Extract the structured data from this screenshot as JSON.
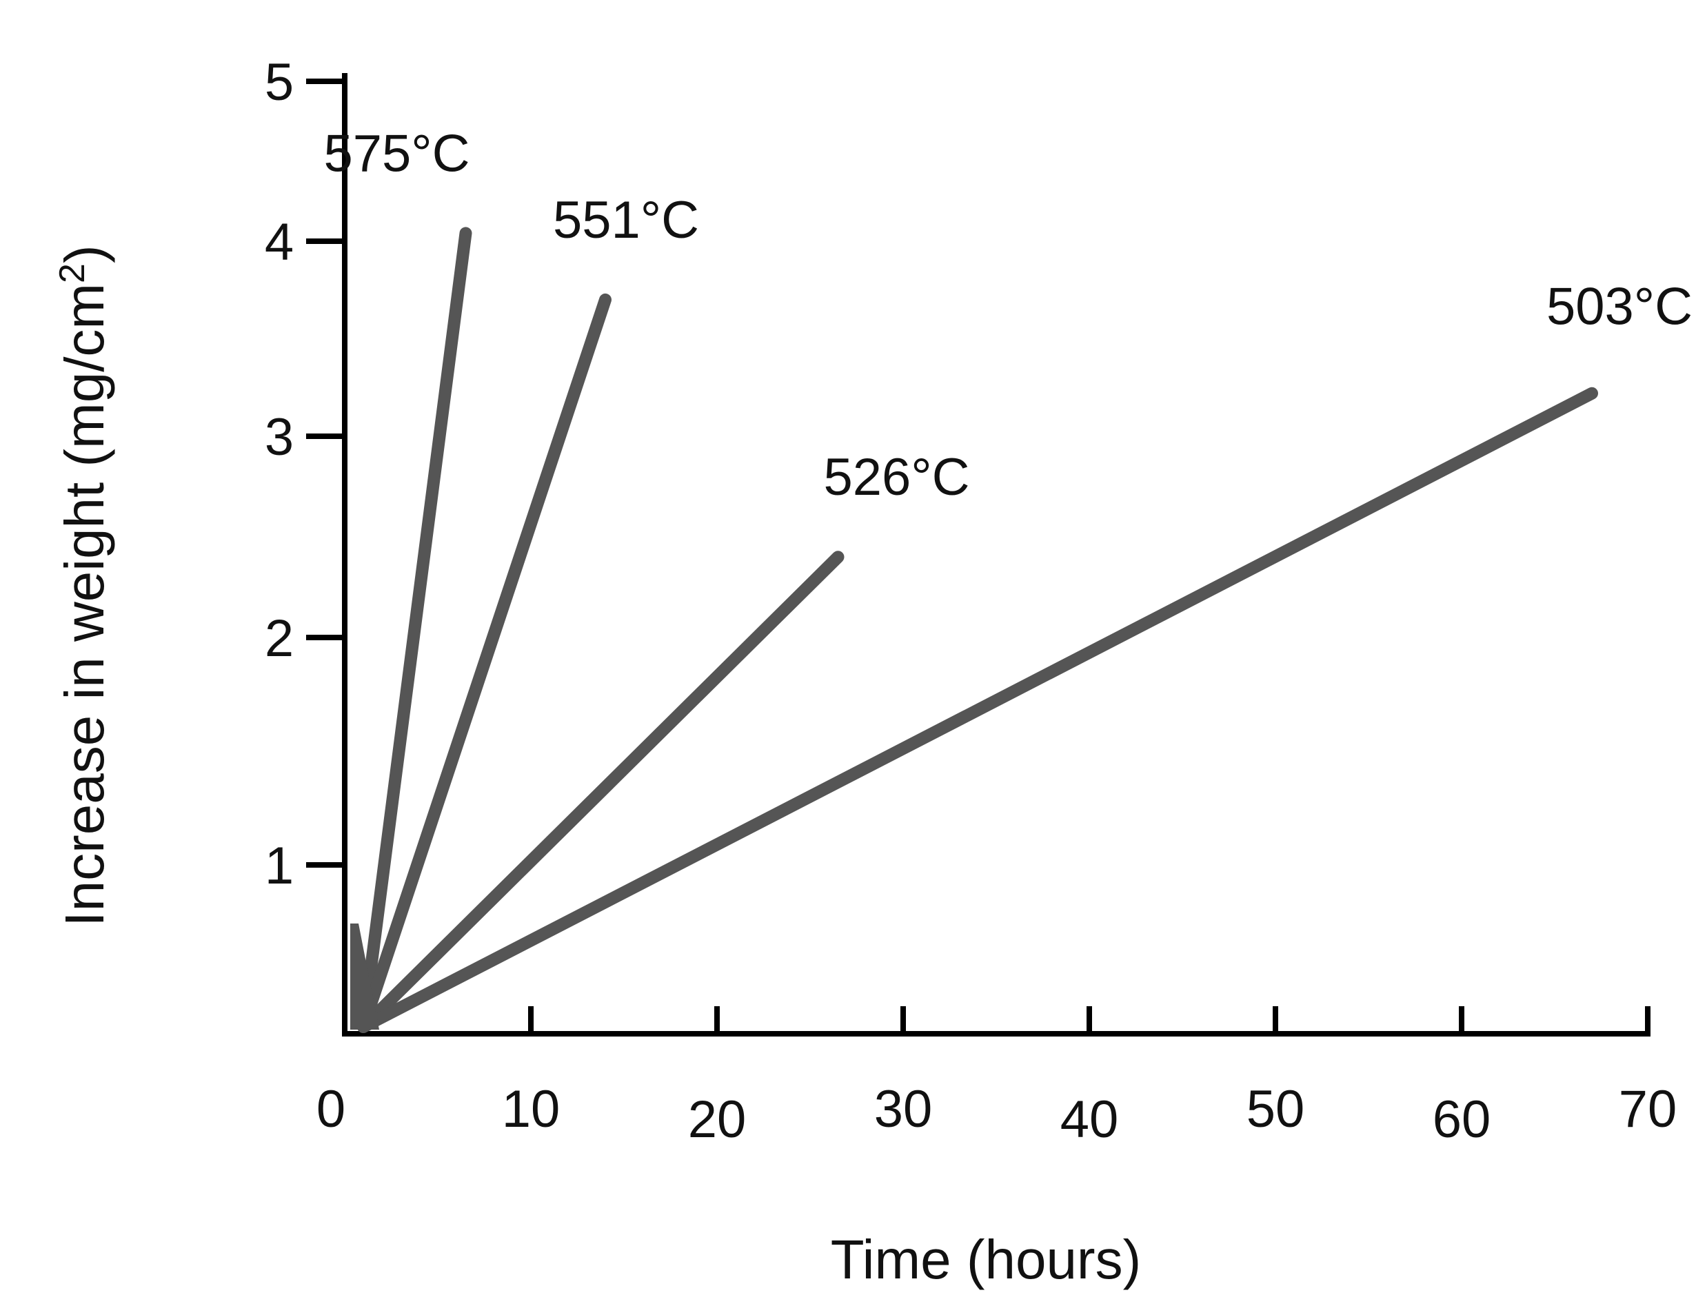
{
  "chart_data": {
    "type": "line",
    "title": "",
    "xlabel": "Time (hours)",
    "ylabel": "Increase in weight (mg/cm",
    "ylabel_superscript": "2",
    "ylabel_close": ")",
    "xlim": [
      0,
      70
    ],
    "ylim": [
      0,
      5
    ],
    "xticks": [
      "0",
      "10",
      "20",
      "30",
      "40",
      "50",
      "60",
      "70"
    ],
    "yticks": [
      "1",
      "2",
      "3",
      "4",
      "5"
    ],
    "grid": false,
    "legend": "none",
    "line_color": "#555555",
    "series": [
      {
        "name": "575°C",
        "x": [
          1,
          6.5
        ],
        "y": [
          0,
          4.05
        ]
      },
      {
        "name": "551°C",
        "x": [
          1,
          14
        ],
        "y": [
          0,
          3.7
        ]
      },
      {
        "name": "526°C",
        "x": [
          1,
          26.5
        ],
        "y": [
          0,
          2.4
        ]
      },
      {
        "name": "503°C",
        "x": [
          1,
          67
        ],
        "y": [
          0,
          3.22
        ]
      }
    ]
  }
}
